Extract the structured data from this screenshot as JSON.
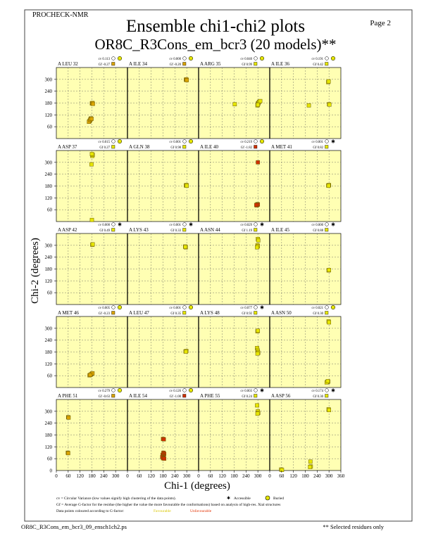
{
  "header": {
    "program": "PROCHECK-NMR",
    "title": "Ensemble chi1-chi2 plots",
    "subtitle": "OR8C_R3Cons_em_bcr3 (20 models)**",
    "page": "Page  2"
  },
  "axes": {
    "xlabel": "Chi-1 (degrees)",
    "ylabel": "Chi-2 (degrees)",
    "xticks": [
      "0",
      "60",
      "120",
      "180",
      "240",
      "300",
      "360"
    ],
    "yticks": [
      "300",
      "240",
      "180",
      "120",
      "60",
      "0"
    ]
  },
  "legend": {
    "line1": "cv = Circular Variance (low values signify high clustering of the data points).",
    "accessible": "Accessible",
    "buried": "Buried",
    "line2": "Gf = Average G-factor for the residue (the higher the value the more favourable the conformations) based on analysis of high-res. Xtal structures",
    "line3": "Data points coloured according to G-factor:",
    "favourable": "Favourable",
    "unfavourable": "Unfavourable"
  },
  "footer": {
    "filename": "OR8C_R3Cons_em_bcr3_09_ensch1ch2.ps",
    "note": "** Selected residues only"
  },
  "colors": {
    "panel_bg": "#ffffb3",
    "favourable": "#e6e600",
    "mid": "#d9a400",
    "unfavourable": "#d03000",
    "grid": "#555555",
    "axis": "#000000"
  },
  "chart_data": {
    "type": "scatter",
    "xlim": [
      0,
      360
    ],
    "ylim": [
      0,
      360
    ],
    "grid": true,
    "panels": [
      {
        "label": "A LEU 32",
        "cv": "cv 0.113",
        "gf": "Gf -0.27",
        "access": "buried",
        "points": [
          [
            180,
            178
          ],
          [
            183,
            180
          ],
          [
            185,
            176
          ],
          [
            175,
            102
          ],
          [
            173,
            98
          ],
          [
            170,
            92
          ],
          [
            168,
            88
          ],
          [
            165,
            85
          ],
          [
            172,
            95
          ],
          [
            178,
            100
          ]
        ]
      },
      {
        "label": "A ILE 34",
        "cv": "cv 0.000",
        "gf": "Gf -0.20",
        "access": "buried",
        "points": [
          [
            296,
            298
          ],
          [
            298,
            300
          ],
          [
            300,
            296
          ]
        ]
      },
      {
        "label": "A ARG 35",
        "cv": "cv 0.040",
        "gf": "Gf 0.99",
        "access": "buried",
        "points": [
          [
            183,
            174
          ],
          [
            300,
            178
          ],
          [
            302,
            176
          ],
          [
            298,
            168
          ],
          [
            304,
            182
          ],
          [
            306,
            186
          ],
          [
            312,
            190
          ],
          [
            300,
            172
          ]
        ]
      },
      {
        "label": "A ILE 36",
        "cv": "cv 0.191",
        "gf": "Gf 0.42",
        "access": "buried",
        "points": [
          [
            296,
            286
          ],
          [
            298,
            290
          ],
          [
            300,
            174
          ],
          [
            302,
            172
          ],
          [
            198,
            168
          ]
        ]
      },
      {
        "label": "A ASP 37",
        "cv": "cv 0.015",
        "gf": "Gf 0.27",
        "access": "buried",
        "points": [
          [
            182,
            333
          ],
          [
            184,
            338
          ],
          [
            180,
            342
          ],
          [
            178,
            290
          ],
          [
            180,
            8
          ]
        ]
      },
      {
        "label": "A GLN 38",
        "cv": "cv 0.001",
        "gf": "Gf 0.98",
        "access": "buried",
        "points": [
          [
            296,
            183
          ],
          [
            298,
            185
          ],
          [
            300,
            181
          ]
        ]
      },
      {
        "label": "A ILE 40",
        "cv": "cv 0.219",
        "gf": "Gf -1.82",
        "access": "buried",
        "points": [
          [
            300,
            300
          ],
          [
            296,
            85
          ],
          [
            298,
            88
          ],
          [
            294,
            82
          ],
          [
            300,
            86
          ],
          [
            292,
            84
          ]
        ]
      },
      {
        "label": "A MET 41",
        "cv": "cv 0.001",
        "gf": "Gf 0.82",
        "access": "accessible",
        "points": [
          [
            296,
            183
          ],
          [
            300,
            185
          ],
          [
            298,
            181
          ]
        ]
      },
      {
        "label": "A ASP 42",
        "cv": "cv 0.000",
        "gf": "Gf 0.49",
        "access": "accessible",
        "points": [
          [
            182,
            303
          ],
          [
            184,
            305
          ]
        ]
      },
      {
        "label": "A LYS 43",
        "cv": "cv 0.001",
        "gf": "Gf 0.33",
        "access": "accessible",
        "points": [
          [
            292,
            294
          ],
          [
            295,
            290
          ],
          [
            293,
            292
          ]
        ]
      },
      {
        "label": "A ASN 44",
        "cv": "cv 0.029",
        "gf": "Gf 1.19",
        "access": "accessible",
        "points": [
          [
            300,
            332
          ],
          [
            302,
            325
          ],
          [
            298,
            300
          ],
          [
            300,
            295
          ],
          [
            296,
            290
          ]
        ]
      },
      {
        "label": "A ILE 45",
        "cv": "cv 0.000",
        "gf": "Gf 0.88",
        "access": "accessible",
        "points": [
          [
            298,
            173
          ],
          [
            300,
            175
          ]
        ]
      },
      {
        "label": "A MET 46",
        "cv": "cv 0.005",
        "gf": "Gf -0.23",
        "access": "buried",
        "points": [
          [
            168,
            62
          ],
          [
            175,
            66
          ],
          [
            180,
            70
          ],
          [
            183,
            72
          ],
          [
            172,
            64
          ]
        ]
      },
      {
        "label": "A LEU 47",
        "cv": "cv 0.001",
        "gf": "Gf 0.35",
        "access": "buried",
        "points": [
          [
            294,
            183
          ],
          [
            298,
            185
          ],
          [
            296,
            182
          ]
        ]
      },
      {
        "label": "A LYS 48",
        "cv": "cv 0.077",
        "gf": "Gf 0.92",
        "access": "accessible",
        "points": [
          [
            298,
            285
          ],
          [
            300,
            288
          ],
          [
            296,
            200
          ],
          [
            298,
            190
          ],
          [
            300,
            182
          ],
          [
            302,
            176
          ],
          [
            298,
            172
          ]
        ]
      },
      {
        "label": "A ASN 50",
        "cv": "cv 0.021",
        "gf": "Gf 0.30",
        "access": "buried",
        "points": [
          [
            298,
            335
          ],
          [
            300,
            330
          ],
          [
            296,
            30
          ],
          [
            292,
            28
          ],
          [
            288,
            26
          ],
          [
            294,
            32
          ]
        ]
      },
      {
        "label": "A PHE 51",
        "cv": "cv 0.279",
        "gf": "Gf -0.63",
        "access": "buried",
        "points": [
          [
            60,
            270
          ],
          [
            62,
            268
          ],
          [
            58,
            90
          ],
          [
            60,
            88
          ]
        ]
      },
      {
        "label": "A ILE 54",
        "cv": "cv 0.126",
        "gf": "Gf -1.00",
        "access": "buried",
        "points": [
          [
            180,
            160
          ],
          [
            184,
            158
          ],
          [
            182,
            90
          ],
          [
            186,
            85
          ],
          [
            178,
            80
          ],
          [
            180,
            75
          ],
          [
            182,
            70
          ],
          [
            176,
            68
          ],
          [
            184,
            65
          ],
          [
            180,
            62
          ],
          [
            186,
            60
          ]
        ]
      },
      {
        "label": "A PHE 55",
        "cv": "cv 0.003",
        "gf": "Gf 0.24",
        "access": "accessible",
        "points": [
          [
            296,
            330
          ],
          [
            300,
            300
          ],
          [
            302,
            292
          ],
          [
            298,
            288
          ]
        ]
      },
      {
        "label": "A ASP 56",
        "cv": "cv 0.174",
        "gf": "Gf 0.30",
        "access": "accessible",
        "points": [
          [
            298,
            310
          ],
          [
            300,
            306
          ],
          [
            58,
            5
          ],
          [
            62,
            3
          ],
          [
            206,
            45
          ],
          [
            208,
            20
          ],
          [
            204,
            18
          ]
        ]
      }
    ]
  }
}
